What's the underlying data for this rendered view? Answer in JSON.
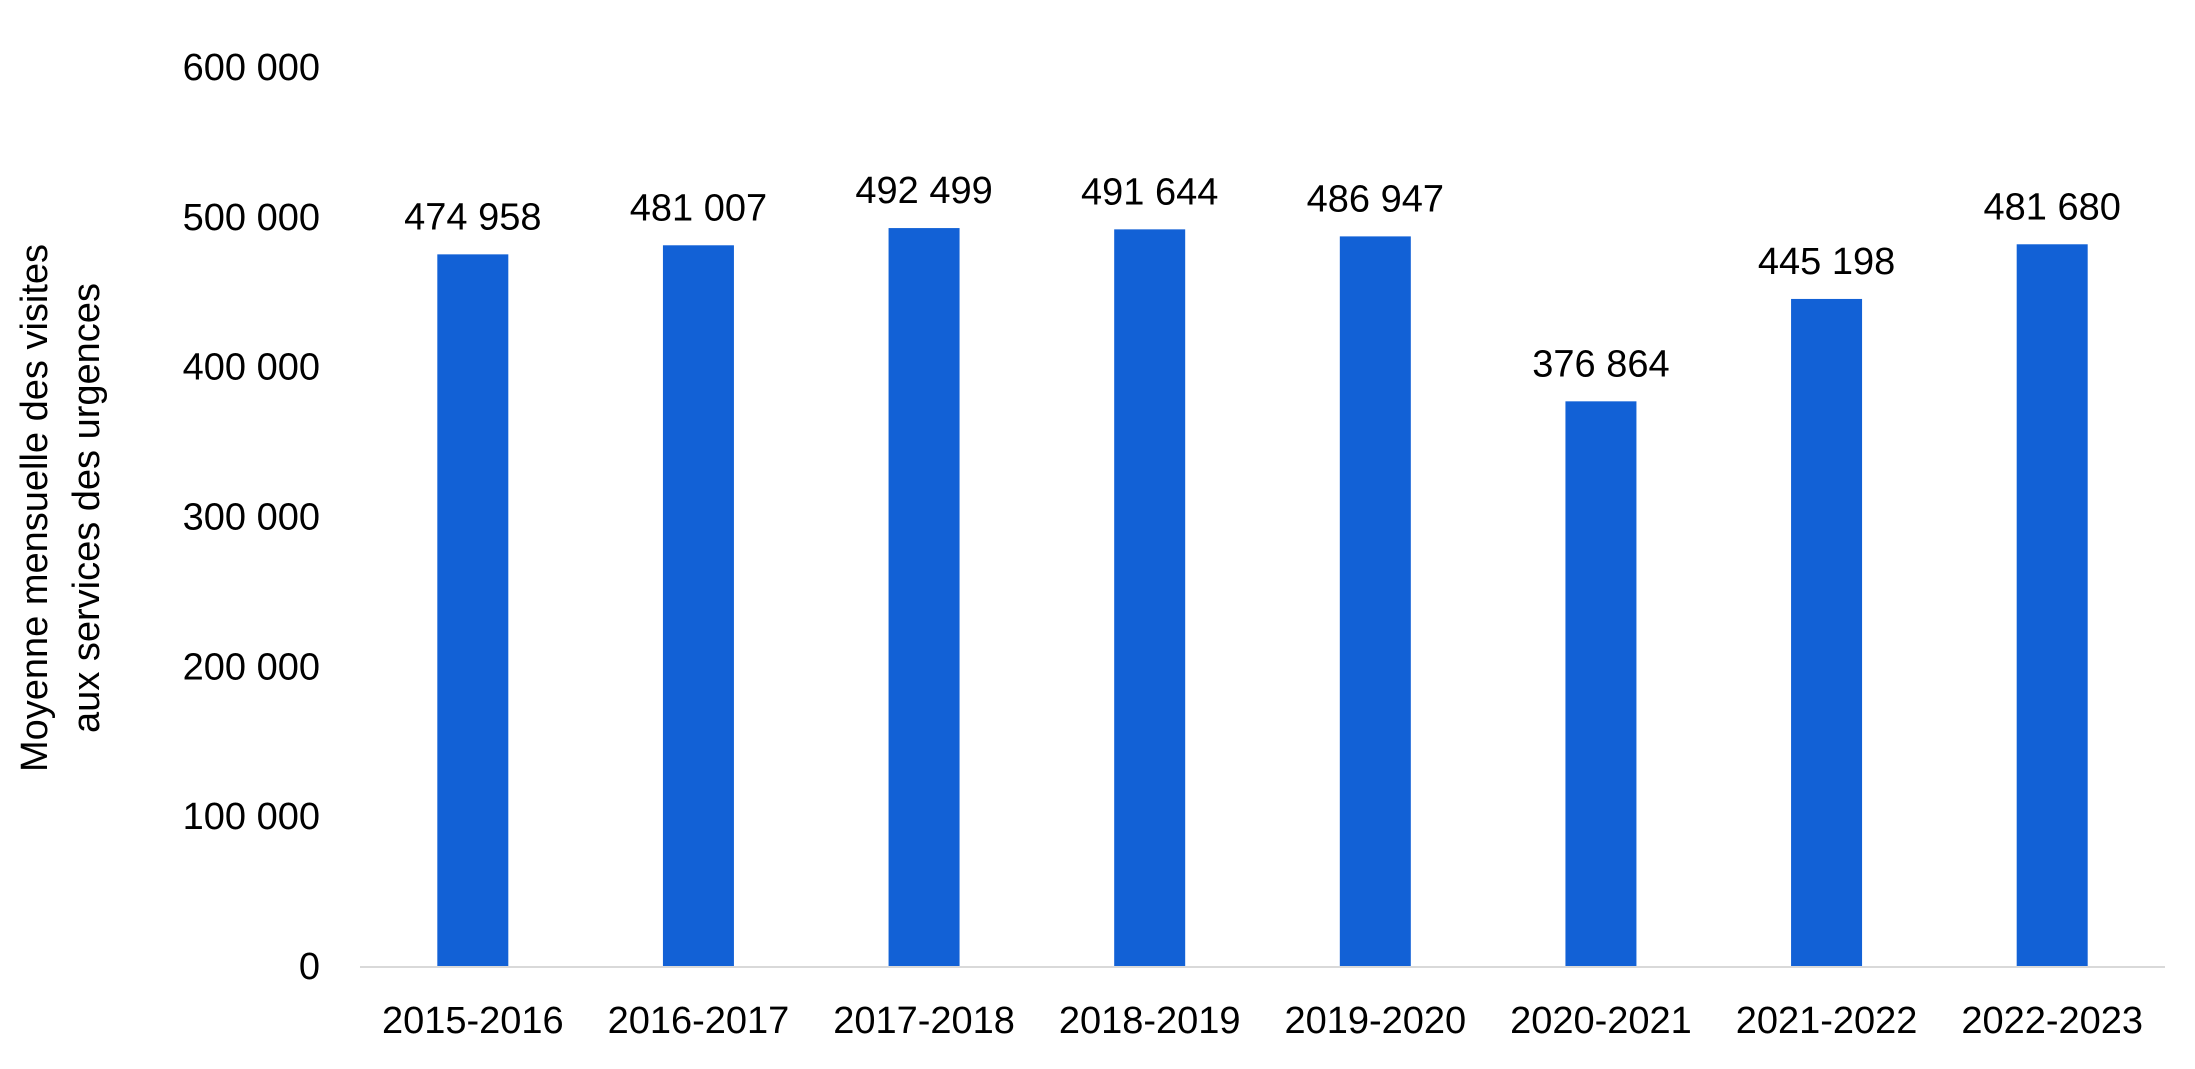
{
  "chart_data": {
    "type": "bar",
    "categories": [
      "2015-2016",
      "2016-2017",
      "2017-2018",
      "2018-2019",
      "2019-2020",
      "2020-2021",
      "2021-2022",
      "2022-2023"
    ],
    "values": [
      474958,
      481007,
      492499,
      491644,
      486947,
      376864,
      445198,
      481680
    ],
    "data_labels": [
      "474 958",
      "481 007",
      "492 499",
      "491 644",
      "486 947",
      "376 864",
      "445 198",
      "481 680"
    ],
    "y_ticks": [
      0,
      100000,
      200000,
      300000,
      400000,
      500000,
      600000
    ],
    "y_tick_labels": [
      "0",
      "100 000",
      "200 000",
      "300 000",
      "400 000",
      "500 000",
      "600 000"
    ],
    "ylim": [
      0,
      600000
    ],
    "ylabel": [
      "Moyenne mensuelle des visites",
      "aux services des urgences"
    ],
    "xlabel": "",
    "title": "",
    "grid": false,
    "legend": "none",
    "colors": {
      "bar": "#1261d6",
      "axis": "#d9d9d9"
    }
  }
}
